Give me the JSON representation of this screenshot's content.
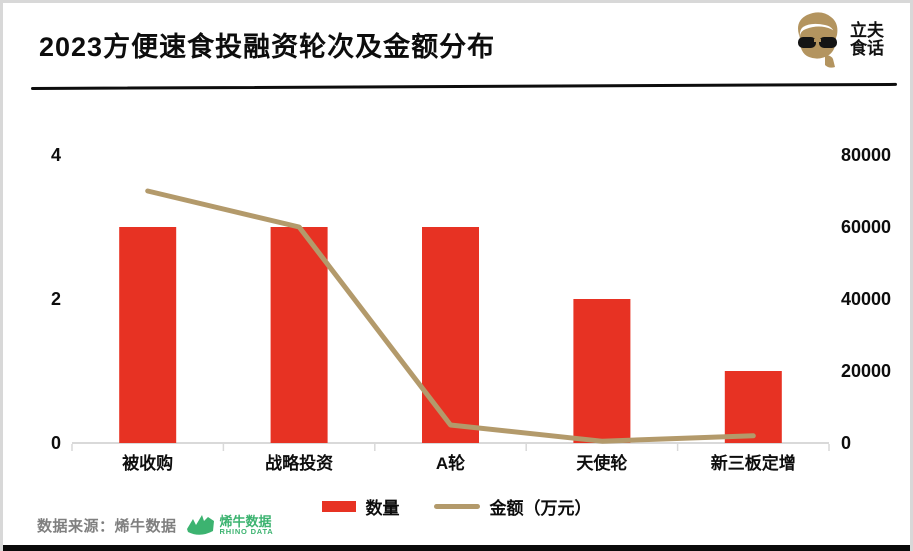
{
  "page": {
    "title": "2023方便速食投融资轮次及金额分布",
    "brand": {
      "line1": "立夫",
      "line2": "食话"
    },
    "footer": {
      "source_label": "数据来源：烯牛数据",
      "logo_name": "烯牛数据",
      "logo_sub": "RHINO DATA"
    },
    "colors": {
      "bar_red": "#e73223",
      "line_tan": "#b39a6b",
      "axis_gray": "#d9d9d9",
      "text_black": "#0d0d0d",
      "source_gray": "#7f7f7f",
      "rhino_green": "#3cb370",
      "brand_tan": "#b3945f"
    }
  },
  "chart_data": {
    "type": "combo",
    "categories": [
      "被收购",
      "战略投资",
      "A轮",
      "天使轮",
      "新三板定增"
    ],
    "series": [
      {
        "name": "数量",
        "type": "bar",
        "axis": "left",
        "color": "#e73223",
        "values": [
          3,
          3,
          3,
          2,
          1
        ]
      },
      {
        "name": "金额（万元）",
        "type": "line",
        "axis": "right",
        "color": "#b39a6b",
        "values": [
          70000,
          60000,
          5000,
          500,
          2000
        ]
      }
    ],
    "left_axis": {
      "ticks": [
        0,
        2,
        4
      ],
      "range": [
        0,
        4
      ]
    },
    "right_axis": {
      "ticks": [
        0,
        20000,
        40000,
        60000,
        80000
      ],
      "range": [
        0,
        80000
      ]
    },
    "grid": false,
    "legend_position": "bottom",
    "legend": [
      {
        "label": "数量",
        "type": "bar"
      },
      {
        "label": "金额（万元）",
        "type": "line"
      }
    ]
  }
}
